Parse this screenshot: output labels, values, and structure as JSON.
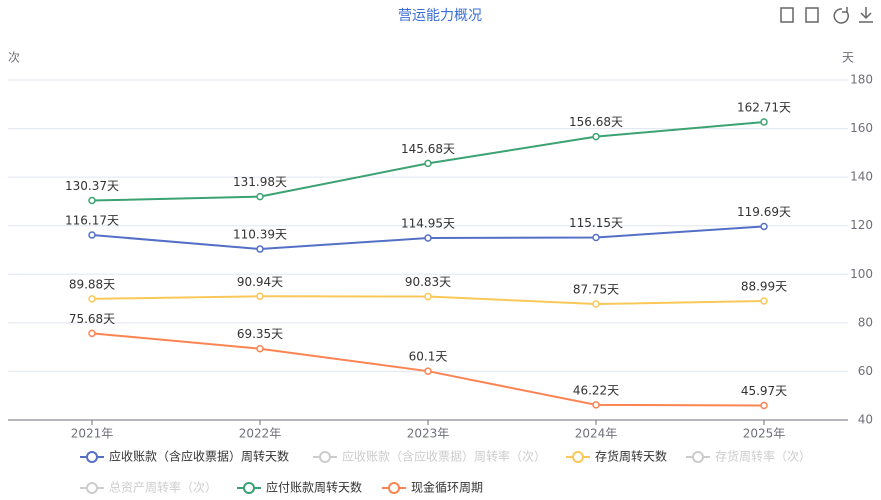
{
  "chart_data": {
    "type": "line",
    "title": "营运能力概况",
    "yaxis_name": "次",
    "y2axis_name": "天",
    "categories": [
      "2021年",
      "2022年",
      "2023年",
      "2024年",
      "2025年"
    ],
    "y2lim": [
      40,
      180
    ],
    "y2ticks": [
      40,
      60,
      80,
      100,
      120,
      140,
      160,
      180
    ],
    "grid": true,
    "legend": "bottom",
    "series": [
      {
        "name": "应收账款（含应收票据）周转天数",
        "color": "#5470c6",
        "axis": "y2",
        "visible": true,
        "values": [
          116.17,
          110.39,
          114.95,
          115.15,
          119.69
        ],
        "value_labels": [
          "116.17天",
          "110.39天",
          "114.95天",
          "115.15天",
          "119.69天"
        ]
      },
      {
        "name": "应收账款（含应收票据）周转率（次）",
        "color": "#cccccc",
        "visible": false
      },
      {
        "name": "存货周转天数",
        "color": "#fac858",
        "axis": "y2",
        "visible": true,
        "values": [
          89.88,
          90.94,
          90.83,
          87.75,
          88.99
        ],
        "value_labels": [
          "89.88天",
          "90.94天",
          "90.83天",
          "87.75天",
          "88.99天"
        ]
      },
      {
        "name": "存货周转率（次）",
        "color": "#cccccc",
        "visible": false
      },
      {
        "name": "总资产周转率（次）",
        "color": "#cccccc",
        "visible": false
      },
      {
        "name": "应付账款周转天数",
        "color": "#3ba272",
        "axis": "y2",
        "visible": true,
        "values": [
          130.37,
          131.98,
          145.68,
          156.68,
          162.71
        ],
        "value_labels": [
          "130.37天",
          "131.98天",
          "145.68天",
          "156.68天",
          "162.71天"
        ]
      },
      {
        "name": "现金循环周期",
        "color": "#fc8452",
        "axis": "y2",
        "visible": true,
        "values": [
          75.68,
          69.35,
          60.1,
          46.22,
          45.97
        ],
        "value_labels": [
          "75.68天",
          "69.35天",
          "60.1天",
          "46.22天",
          "45.97天"
        ]
      }
    ]
  }
}
